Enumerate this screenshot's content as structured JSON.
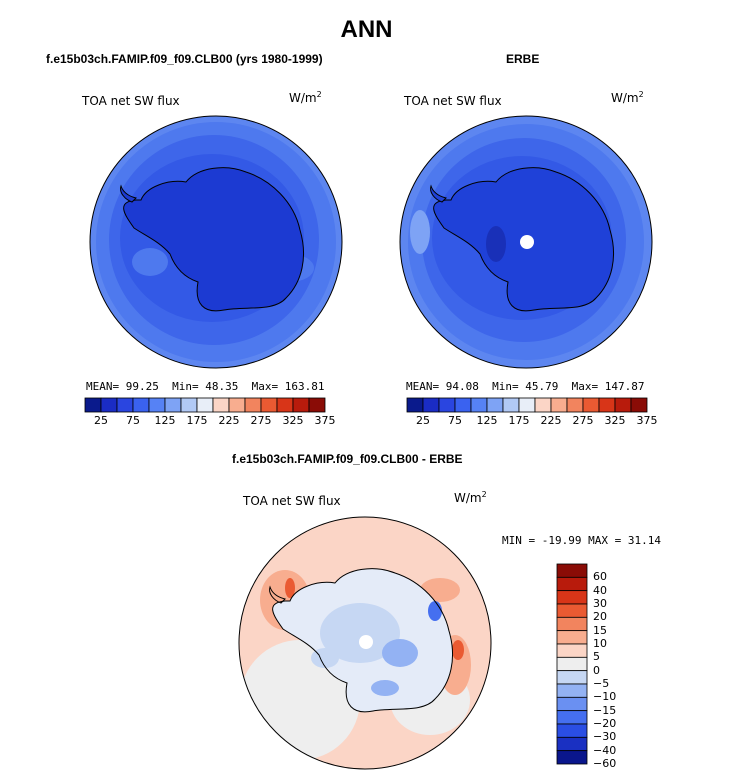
{
  "title": "ANN",
  "chart_data": [
    {
      "type": "heatmap",
      "panel": "model",
      "title": "f.e15b03ch.FAMIP.f09_f09.CLB00 (yrs 1980-1999)",
      "field_label": "TOA net SW flux",
      "units": "W/m",
      "units_exp": "2",
      "stats": {
        "mean_label": "MEAN=",
        "mean": "99.25",
        "min_label": "Min=",
        "min": "48.35",
        "max_label": "Max=",
        "max": "163.81"
      },
      "colorbar_ticks": [
        "25",
        "75",
        "125",
        "175",
        "225",
        "275",
        "325",
        "375"
      ]
    },
    {
      "type": "heatmap",
      "panel": "obs",
      "title": "ERBE",
      "field_label": "TOA net SW flux",
      "units": "W/m",
      "units_exp": "2",
      "stats": {
        "mean_label": "MEAN=",
        "mean": "94.08",
        "min_label": "Min=",
        "min": "45.79",
        "max_label": "Max=",
        "max": "147.87"
      },
      "colorbar_ticks": [
        "25",
        "75",
        "125",
        "175",
        "225",
        "275",
        "325",
        "375"
      ]
    },
    {
      "type": "heatmap",
      "panel": "difference",
      "title": "f.e15b03ch.FAMIP.f09_f09.CLB00 - ERBE",
      "field_label": "TOA net SW flux",
      "units": "W/m",
      "units_exp": "2",
      "minmax_text": "MIN = -19.99 MAX =  31.14",
      "colorbar_levels": [
        "60",
        "40",
        "30",
        "20",
        "15",
        "10",
        "5",
        "0",
        "−5",
        "−10",
        "−15",
        "−20",
        "−30",
        "−40",
        "−60"
      ]
    }
  ],
  "colors": {
    "abs_scale": [
      "#0a1a8c",
      "#1a2cc4",
      "#2a45e0",
      "#3a62f0",
      "#5682f5",
      "#7ea3f5",
      "#b1c9f5",
      "#e8eef8",
      "#fbd5c6",
      "#f8ad8f",
      "#f2845e",
      "#ea5a32",
      "#d83518",
      "#b81b0c",
      "#8a0c06"
    ],
    "diff_scale": [
      "#8a0c06",
      "#b81b0c",
      "#d83518",
      "#ea5a32",
      "#f2845e",
      "#f8ad8f",
      "#fbd5c6",
      "#eeeeee",
      "#c6d7f3",
      "#93b2f3",
      "#6a90f2",
      "#456ff0",
      "#2a4ee4",
      "#1a30c2",
      "#0a168c"
    ],
    "land_model": "#1c3ad2",
    "land_obs": "#1f41d8"
  }
}
